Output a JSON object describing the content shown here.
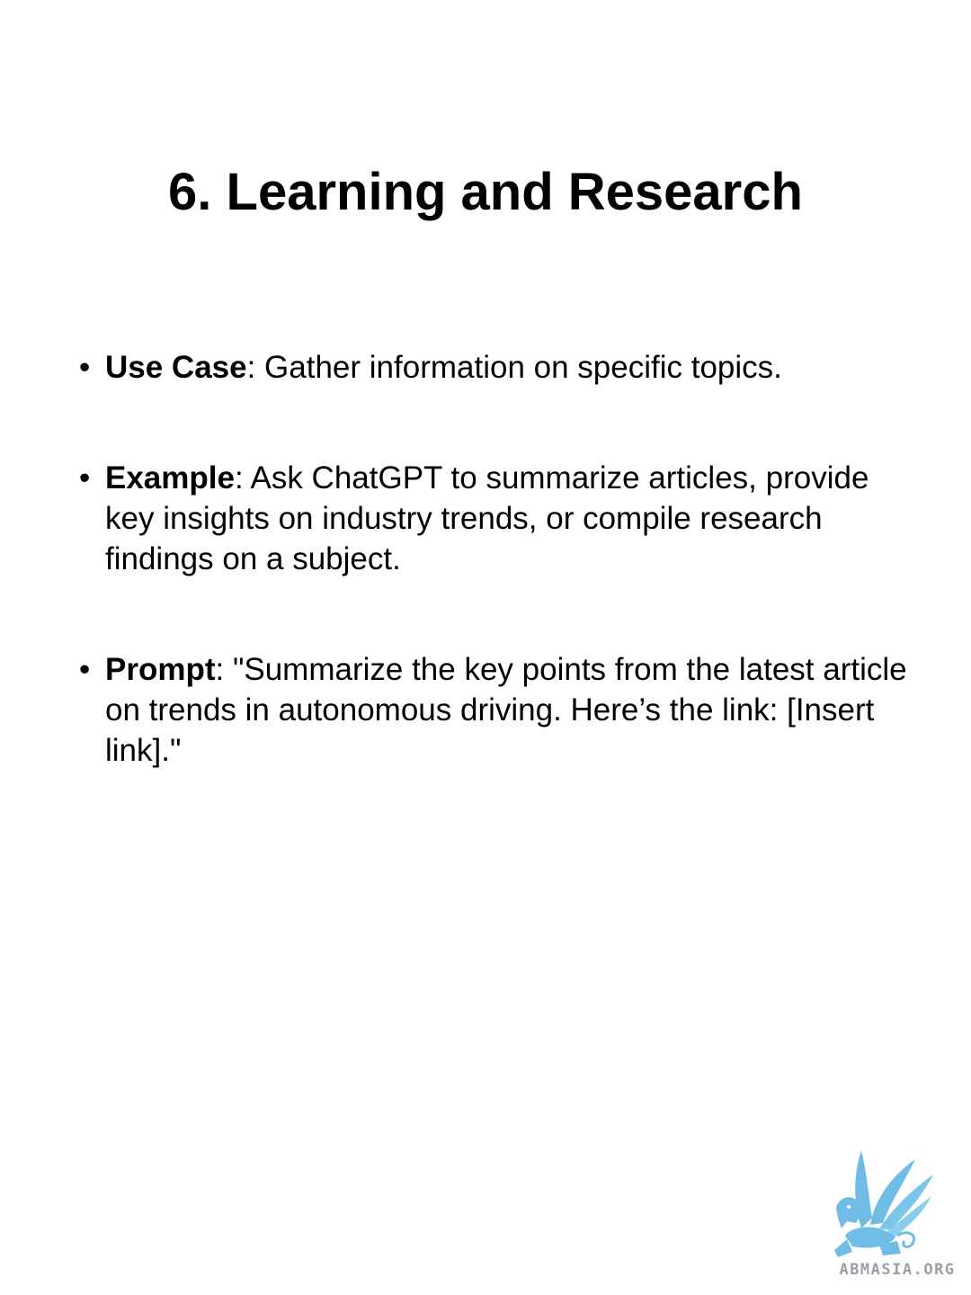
{
  "slide": {
    "title": "6. Learning and Research"
  },
  "bullets": [
    {
      "term": "Use Case",
      "text": ": Gather information on specific topics."
    },
    {
      "term": "Example",
      "text": ": Ask ChatGPT to summarize articles, provide key insights on industry trends, or compile research findings on a subject."
    },
    {
      "term": "Prompt",
      "text": ": \"Summarize the key points from the latest article on trends in autonomous driving. Here’s the link: [Insert link].\""
    }
  ],
  "logo": {
    "text": "ABMASIA.ORG",
    "icon": "griffin-logo-icon",
    "color": "#6fbde6"
  }
}
